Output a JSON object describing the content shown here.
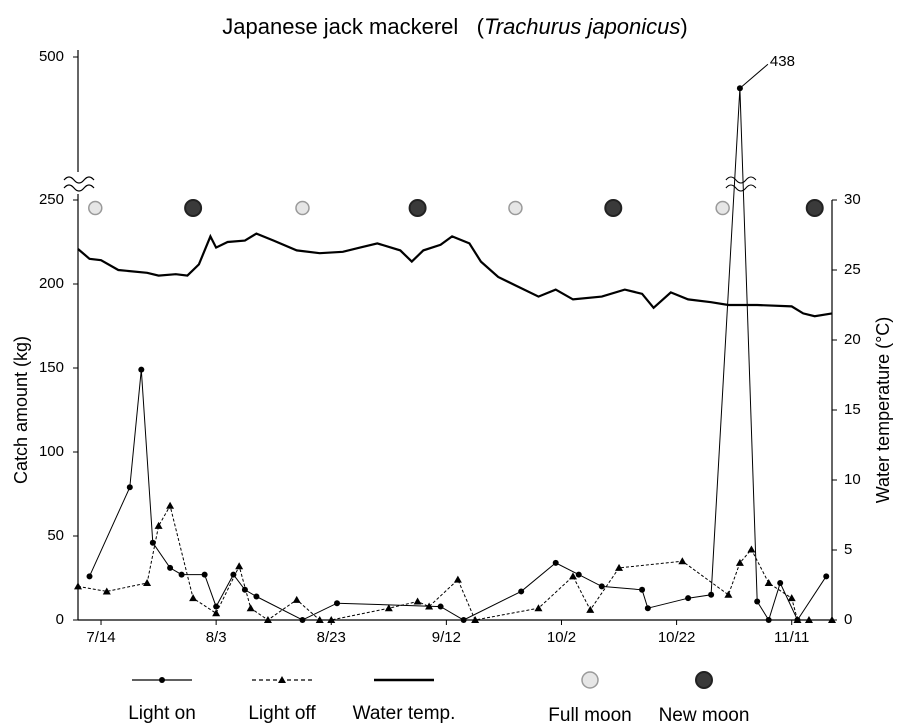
{
  "chart_data": {
    "type": "line",
    "title_prefix": "Japanese jack mackerel   (",
    "title_italic": "Trachurus japonicus",
    "title_suffix": ")",
    "ylabel": "Catch amount (kg)",
    "y2label": "Water temperature (°C)",
    "xlim": [
      "7/10",
      "11/18"
    ],
    "xticks": [
      "7/14",
      "8/3",
      "8/23",
      "9/12",
      "10/2",
      "10/22",
      "11/11"
    ],
    "ylim": [
      0,
      250
    ],
    "yticks": [
      0,
      50,
      100,
      150,
      200,
      250
    ],
    "y_upper_lim": [
      250,
      500
    ],
    "y_upper_ticks": [
      500
    ],
    "y2lim": [
      0,
      30
    ],
    "y2ticks": [
      0,
      5,
      10,
      15,
      20,
      25,
      30
    ],
    "series": [
      {
        "name": "Light on",
        "color": "#000000",
        "marker": "circle",
        "dash": false,
        "x": [
          "7/12",
          "7/19",
          "7/21",
          "7/23",
          "7/26",
          "7/28",
          "8/1",
          "8/3",
          "8/6",
          "8/8",
          "8/10",
          "8/18",
          "8/24",
          "9/11",
          "9/15",
          "9/25",
          "10/1",
          "10/5",
          "10/9",
          "10/16",
          "10/17",
          "10/24",
          "10/28",
          "11/2",
          "11/5",
          "11/7",
          "11/9",
          "11/12",
          "11/17"
        ],
        "values": [
          26,
          79,
          149,
          46,
          31,
          27,
          27,
          8,
          27,
          18,
          14,
          0,
          10,
          8,
          0,
          17,
          34,
          27,
          20,
          18,
          7,
          13,
          15,
          438,
          11,
          0,
          22,
          0,
          26
        ]
      },
      {
        "name": "Light off",
        "color": "#000000",
        "marker": "triangle",
        "dash": true,
        "x": [
          "7/10",
          "7/15",
          "7/22",
          "7/24",
          "7/26",
          "7/30",
          "8/3",
          "8/7",
          "8/9",
          "8/12",
          "8/17",
          "8/21",
          "8/23",
          "9/2",
          "9/7",
          "9/9",
          "9/14",
          "9/17",
          "9/28",
          "10/4",
          "10/7",
          "10/12",
          "10/23",
          "10/31",
          "11/2",
          "11/4",
          "11/7",
          "11/11",
          "11/12",
          "11/14",
          "11/18"
        ],
        "values": [
          20,
          17,
          22,
          56,
          68,
          13,
          4,
          32,
          7,
          0,
          12,
          0,
          0,
          7,
          11,
          8,
          24,
          0,
          7,
          26,
          6,
          31,
          35,
          15,
          34,
          42,
          22,
          13,
          0,
          0,
          0
        ]
      },
      {
        "name": "Water temp.",
        "color": "#000000",
        "marker": "none",
        "dash": false,
        "axis": "y2",
        "x": [
          "7/10",
          "7/12",
          "7/14",
          "7/17",
          "7/22",
          "7/24",
          "7/27",
          "7/29",
          "7/31",
          "8/2",
          "8/3",
          "8/5",
          "8/8",
          "8/10",
          "8/13",
          "8/17",
          "8/21",
          "8/25",
          "8/28",
          "8/31",
          "9/4",
          "9/6",
          "9/8",
          "9/11",
          "9/13",
          "9/16",
          "9/18",
          "9/21",
          "9/24",
          "9/28",
          "10/1",
          "10/4",
          "10/9",
          "10/13",
          "10/16",
          "10/18",
          "10/21",
          "10/24",
          "10/28",
          "10/31",
          "11/5",
          "11/11",
          "11/13",
          "11/15",
          "11/18"
        ],
        "values": [
          26.5,
          25.8,
          25.7,
          25,
          24.8,
          24.6,
          24.7,
          24.6,
          25.4,
          27.4,
          26.6,
          27,
          27.1,
          27.6,
          27.1,
          26.4,
          26.2,
          26.3,
          26.6,
          26.9,
          26.4,
          25.6,
          26.4,
          26.8,
          27.4,
          26.9,
          25.6,
          24.5,
          23.9,
          23.1,
          23.6,
          22.9,
          23.1,
          23.6,
          23.3,
          22.3,
          23.4,
          22.9,
          22.7,
          22.5,
          22.5,
          22.4,
          21.9,
          21.7,
          21.9
        ]
      }
    ],
    "full_moon": {
      "name": "Full moon",
      "color": "#e6e6e6",
      "x": [
        "7/13",
        "8/18",
        "9/24",
        "10/30"
      ]
    },
    "new_moon": {
      "name": "New moon",
      "color": "#3a3a3a",
      "x": [
        "7/30",
        "9/7",
        "10/11",
        "11/15"
      ]
    }
  }
}
